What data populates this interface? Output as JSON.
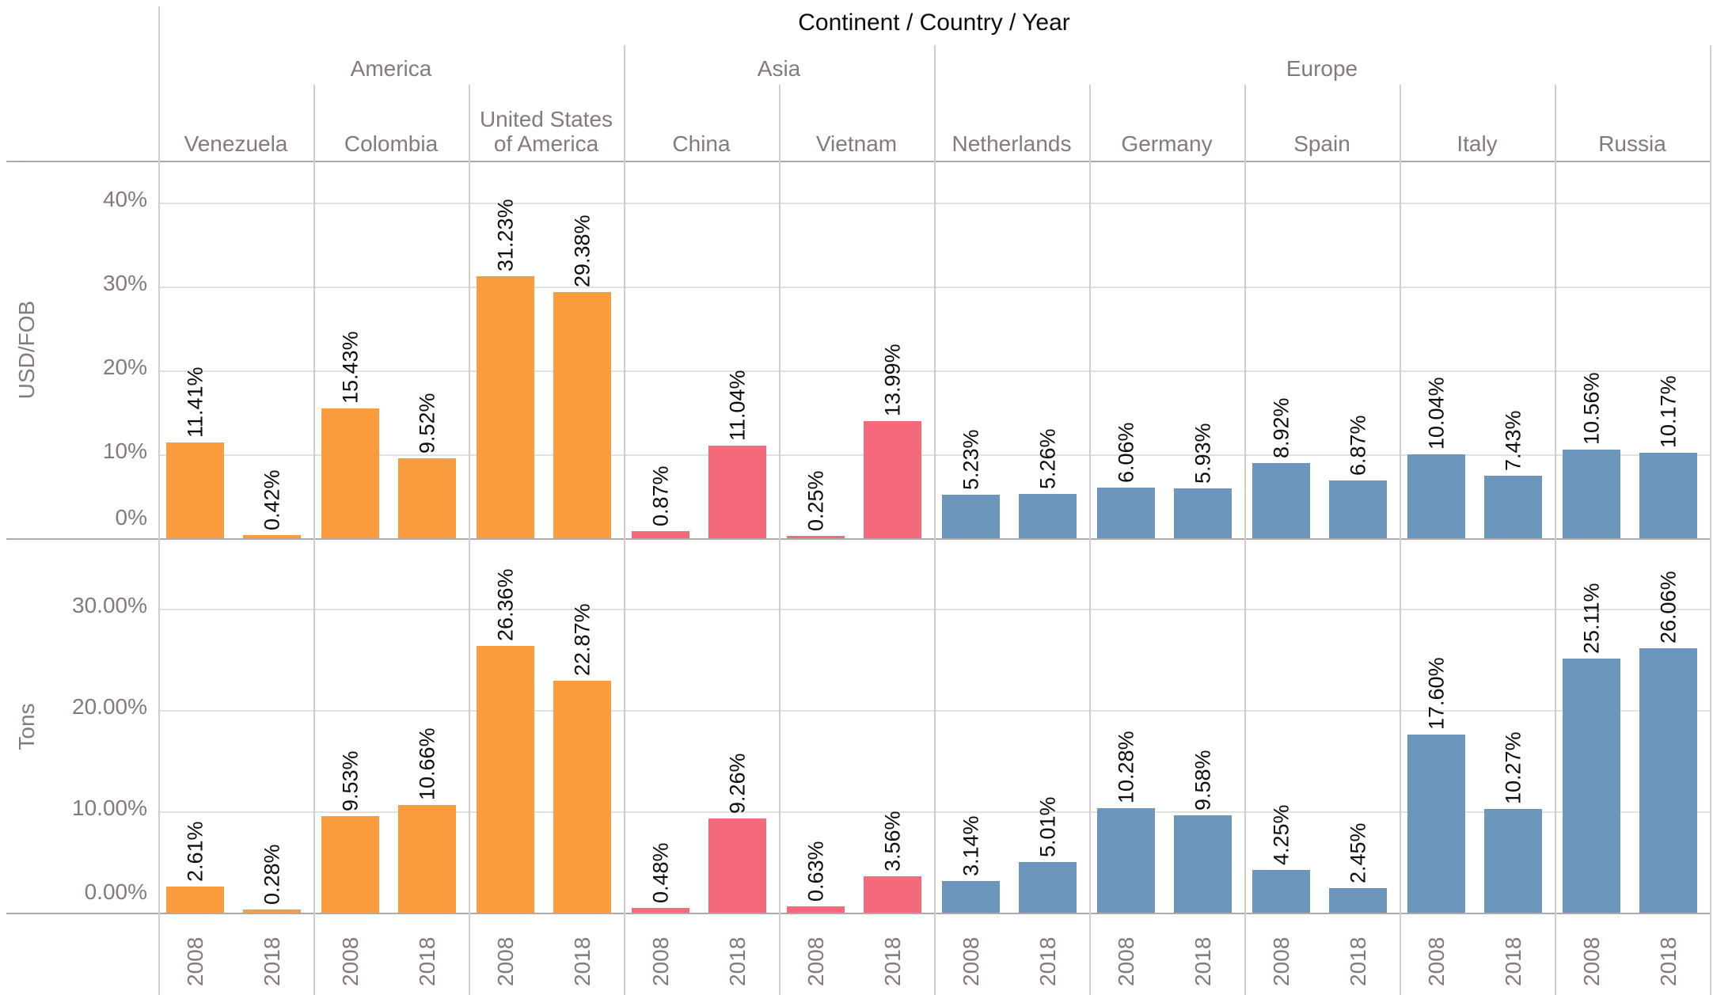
{
  "chart_data": {
    "type": "bar",
    "title": "Continent / Country / Year",
    "legend_position": "none",
    "grid": true,
    "years": [
      "2008",
      "2018"
    ],
    "rows": [
      {
        "id": "usd_fob",
        "label": "USD/FOB",
        "ylim": [
          0,
          45
        ],
        "ticks": [
          {
            "v": 40,
            "t": "40%"
          },
          {
            "v": 30,
            "t": "30%"
          },
          {
            "v": 20,
            "t": "20%"
          },
          {
            "v": 10,
            "t": "10%"
          },
          {
            "v": 0,
            "t": "0%"
          }
        ]
      },
      {
        "id": "tons",
        "label": "Tons",
        "ylim": [
          0,
          37
        ],
        "ticks": [
          {
            "v": 30,
            "t": "30.00%"
          },
          {
            "v": 20,
            "t": "20.00%"
          },
          {
            "v": 10,
            "t": "10.00%"
          },
          {
            "v": 0,
            "t": "0.00%"
          }
        ]
      }
    ],
    "continents": [
      {
        "name": "America",
        "color": "#F89C3E",
        "countries": [
          {
            "name": "Venezuela",
            "usd_fob": [
              "11.41",
              "0.42"
            ],
            "tons": [
              "2.61",
              "0.28"
            ]
          },
          {
            "name": "Colombia",
            "usd_fob": [
              "15.43",
              "9.52"
            ],
            "tons": [
              "9.53",
              "10.66"
            ]
          },
          {
            "name": "United States of America",
            "usd_fob": [
              "31.23",
              "29.38"
            ],
            "tons": [
              "26.36",
              "22.87"
            ]
          }
        ]
      },
      {
        "name": "Asia",
        "color": "#F46A7B",
        "countries": [
          {
            "name": "China",
            "usd_fob": [
              "0.87",
              "11.04"
            ],
            "tons": [
              "0.48",
              "9.26"
            ]
          },
          {
            "name": "Vietnam",
            "usd_fob": [
              "0.25",
              "13.99"
            ],
            "tons": [
              "0.63",
              "3.56"
            ]
          }
        ]
      },
      {
        "name": "Europe",
        "color": "#6D96BD",
        "countries": [
          {
            "name": "Netherlands",
            "usd_fob": [
              "5.23",
              "5.26"
            ],
            "tons": [
              "3.14",
              "5.01"
            ]
          },
          {
            "name": "Germany",
            "usd_fob": [
              "6.06",
              "5.93"
            ],
            "tons": [
              "10.28",
              "9.58"
            ]
          },
          {
            "name": "Spain",
            "usd_fob": [
              "8.92",
              "6.87"
            ],
            "tons": [
              "4.25",
              "2.45"
            ]
          },
          {
            "name": "Italy",
            "usd_fob": [
              "10.04",
              "7.43"
            ],
            "tons": [
              "17.60",
              "10.27"
            ]
          },
          {
            "name": "Russia",
            "usd_fob": [
              "10.56",
              "10.17"
            ],
            "tons": [
              "25.11",
              "26.06"
            ]
          }
        ]
      }
    ]
  }
}
